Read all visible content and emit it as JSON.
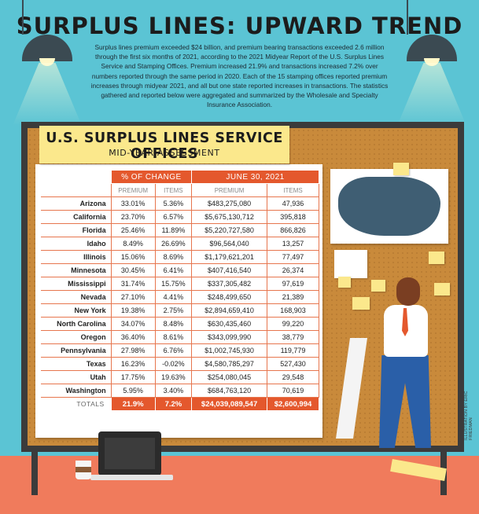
{
  "title": "SURPLUS LINES: UPWARD TREND",
  "intro": "Surplus lines premium exceeded $24 billion, and premium bearing transactions exceeded 2.6 million through the first six months of 2021, according to the 2021 Midyear Report of the U.S. Surplus Lines Service and Stamping Offices. Premium increased 21.9% and transactions increased 7.2% over numbers reported through the same period in 2020. Each of the 15 stamping offices reported premium increases through midyear 2021, and all but one state reported increases in transactions. The statistics gathered and reported below were aggregated and summarized by the Wholesale and Specialty Insurance Association.",
  "board": {
    "title": "U.S. SURPLUS LINES SERVICE OFFICES",
    "subtitle": "MID-YEAR ASSESSMENT"
  },
  "table": {
    "group1": "% OF CHANGE",
    "group2": "JUNE 30, 2021",
    "col_premium": "PREMIUM",
    "col_items": "ITEMS",
    "rows": [
      {
        "state": "Arizona",
        "pct_premium": "33.01%",
        "pct_items": "5.36%",
        "premium": "$483,275,080",
        "items": "47,936"
      },
      {
        "state": "California",
        "pct_premium": "23.70%",
        "pct_items": "6.57%",
        "premium": "$5,675,130,712",
        "items": "395,818"
      },
      {
        "state": "Florida",
        "pct_premium": "25.46%",
        "pct_items": "11.89%",
        "premium": "$5,220,727,580",
        "items": "866,826"
      },
      {
        "state": "Idaho",
        "pct_premium": "8.49%",
        "pct_items": "26.69%",
        "premium": "$96,564,040",
        "items": "13,257"
      },
      {
        "state": "Illinois",
        "pct_premium": "15.06%",
        "pct_items": "8.69%",
        "premium": "$1,179,621,201",
        "items": "77,497"
      },
      {
        "state": "Minnesota",
        "pct_premium": "30.45%",
        "pct_items": "6.41%",
        "premium": "$407,416,540",
        "items": "26,374"
      },
      {
        "state": "Mississippi",
        "pct_premium": "31.74%",
        "pct_items": "15.75%",
        "premium": "$337,305,482",
        "items": "97,619"
      },
      {
        "state": "Nevada",
        "pct_premium": "27.10%",
        "pct_items": "4.41%",
        "premium": "$248,499,650",
        "items": "21,389"
      },
      {
        "state": "New York",
        "pct_premium": "19.38%",
        "pct_items": "2.75%",
        "premium": "$2,894,659,410",
        "items": "168,903"
      },
      {
        "state": "North Carolina",
        "pct_premium": "34.07%",
        "pct_items": "8.48%",
        "premium": "$630,435,460",
        "items": "99,220"
      },
      {
        "state": "Oregon",
        "pct_premium": "36.40%",
        "pct_items": "8.61%",
        "premium": "$343,099,990",
        "items": "38,779"
      },
      {
        "state": "Pennsylvania",
        "pct_premium": "27.98%",
        "pct_items": "6.76%",
        "premium": "$1,002,745,930",
        "items": "119,779"
      },
      {
        "state": "Texas",
        "pct_premium": "16.23%",
        "pct_items": "-0.02%",
        "premium": "$4,580,785,297",
        "items": "527,430"
      },
      {
        "state": "Utah",
        "pct_premium": "17.75%",
        "pct_items": "19.63%",
        "premium": "$254,080,045",
        "items": "29,548"
      },
      {
        "state": "Washington",
        "pct_premium": "5.95%",
        "pct_items": "3.40%",
        "premium": "$684,763,120",
        "items": "70,619"
      }
    ],
    "totals": {
      "label": "TOTALS",
      "pct_premium": "21.9%",
      "pct_items": "7.2%",
      "premium": "$24,039,089,547",
      "items": "$2,600,994"
    }
  },
  "credit": "ILLUSTRATION BY ERIC FRIEDMAN",
  "colors": {
    "accent": "#e4582d",
    "background": "#5bc4d4",
    "board": "#c98a3b",
    "sticky": "#fbe88c"
  }
}
